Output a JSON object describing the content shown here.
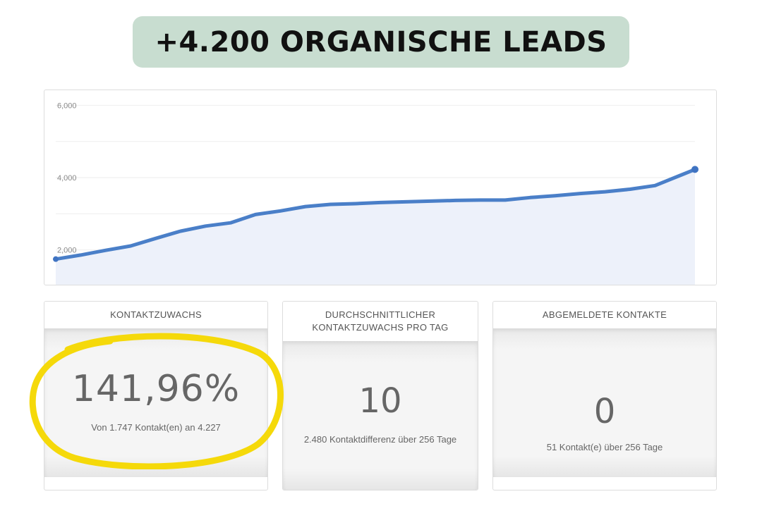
{
  "headline": "+4.200 ORGANISCHE LEADS",
  "chart_data": {
    "type": "area",
    "title": "",
    "xlabel": "",
    "ylabel": "",
    "ylim": [
      1000,
      6300
    ],
    "y_ticks": [
      "6,000",
      "4,000",
      "2,000"
    ],
    "y_tick_values": [
      6000,
      4000,
      2000
    ],
    "grid": true,
    "x": [
      0,
      10,
      20,
      30,
      40,
      50,
      60,
      70,
      80,
      90,
      100,
      110,
      120,
      130,
      140,
      150,
      160,
      170,
      180,
      190,
      200,
      210,
      220,
      230,
      240,
      250,
      256
    ],
    "values": [
      1747,
      1860,
      1990,
      2110,
      2320,
      2520,
      2660,
      2750,
      2980,
      3080,
      3200,
      3260,
      3280,
      3310,
      3330,
      3350,
      3370,
      3380,
      3380,
      3450,
      3500,
      3560,
      3610,
      3680,
      3780,
      4060,
      4227
    ],
    "line_color": "#4a7fc8",
    "fill_color": "#edf1fa",
    "marker_color": "#3f73c2"
  },
  "cards": [
    {
      "header": "KONTAKTZUWACHS",
      "value": "141,96%",
      "subtext": "Von 1.747 Kontakt(en) an 4.227"
    },
    {
      "header": "DURCHSCHNITTLICHER KONTAKTZUWACHS PRO TAG",
      "value": "10",
      "subtext": "2.480 Kontaktdifferenz über 256 Tage"
    },
    {
      "header": "ABGEMELDETE KONTAKTE",
      "value": "0",
      "subtext": "51 Kontakt(e) über 256 Tage"
    }
  ],
  "highlight_color": "#f5d90a"
}
